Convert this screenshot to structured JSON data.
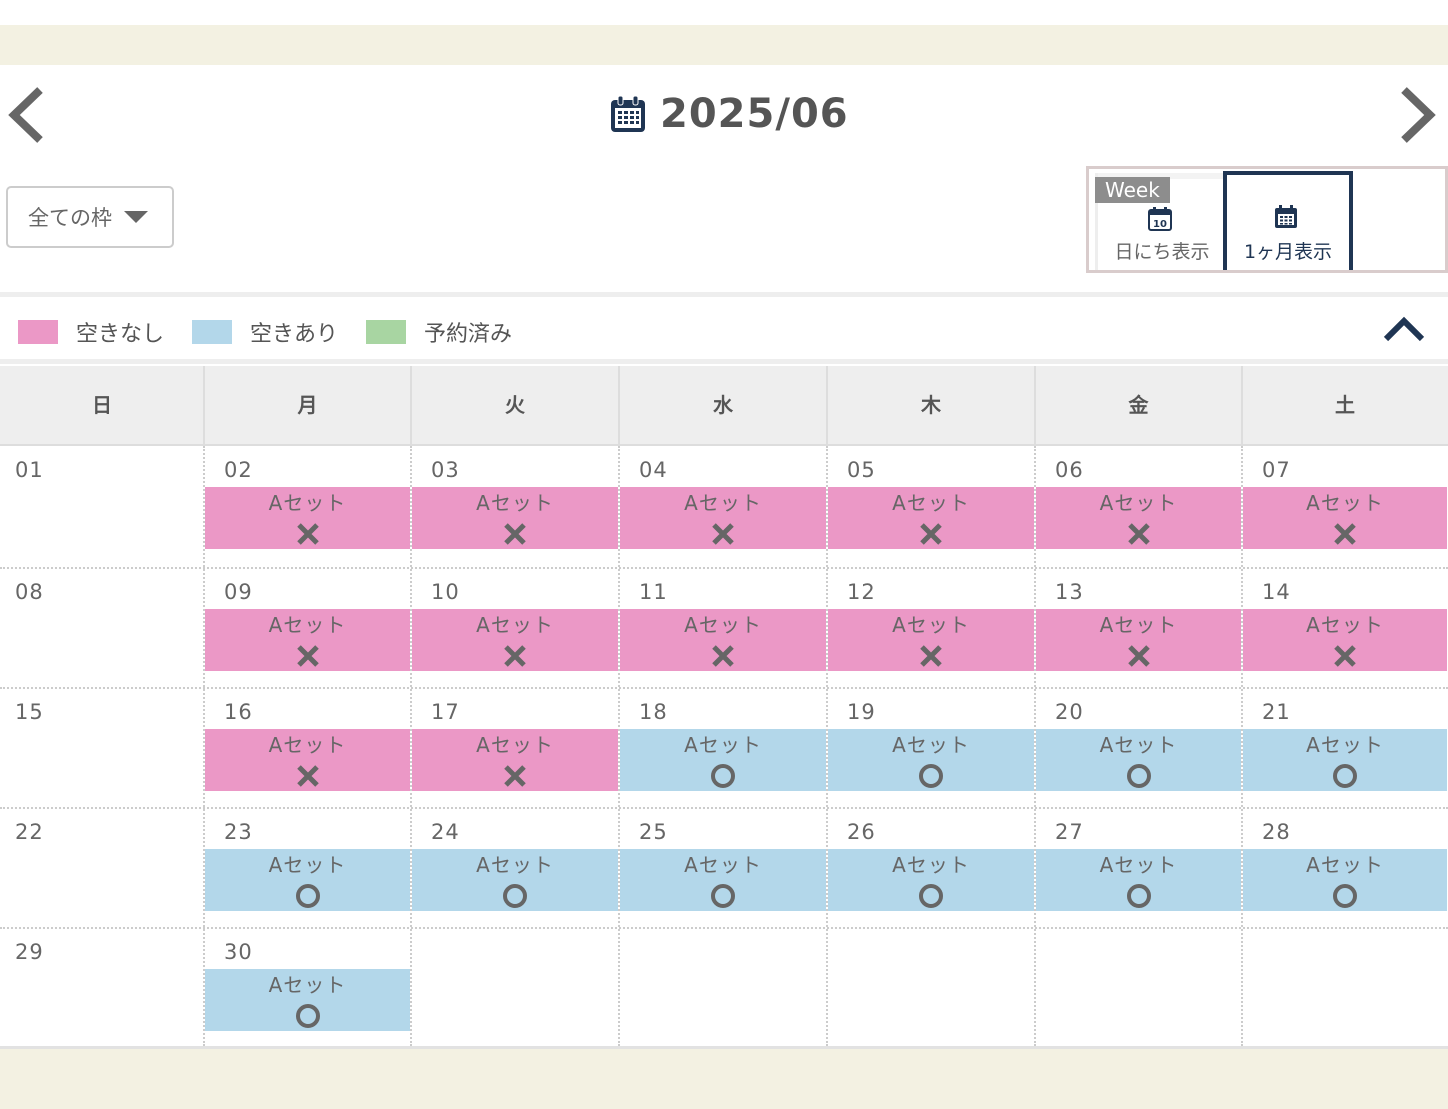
{
  "header": {
    "month_label": "2025/06",
    "prev_icon": "chevron-left-icon",
    "next_icon": "chevron-right-icon",
    "calendar_icon": "calendar-icon"
  },
  "filter": {
    "selected": "全ての枠"
  },
  "view_switch": {
    "week_tag": "Week",
    "day_view_label": "日にち表示",
    "day_view_icon_number": "10",
    "month_view_label": "1ヶ月表示",
    "active": "month"
  },
  "legend": {
    "items": [
      {
        "label": "空きなし",
        "color": "#eb98c6"
      },
      {
        "label": "空きあり",
        "color": "#b3d7ea"
      },
      {
        "label": "予約済み",
        "color": "#a8d5a2"
      }
    ],
    "collapse_icon": "chevron-up-icon"
  },
  "calendar": {
    "weekdays": [
      "日",
      "月",
      "火",
      "水",
      "木",
      "金",
      "土"
    ],
    "weeks": [
      [
        {
          "date": "01",
          "slot": null
        },
        {
          "date": "02",
          "slot": {
            "name": "Aセット",
            "status": "full"
          }
        },
        {
          "date": "03",
          "slot": {
            "name": "Aセット",
            "status": "full"
          }
        },
        {
          "date": "04",
          "slot": {
            "name": "Aセット",
            "status": "full"
          }
        },
        {
          "date": "05",
          "slot": {
            "name": "Aセット",
            "status": "full"
          }
        },
        {
          "date": "06",
          "slot": {
            "name": "Aセット",
            "status": "full"
          }
        },
        {
          "date": "07",
          "slot": {
            "name": "Aセット",
            "status": "full"
          }
        }
      ],
      [
        {
          "date": "08",
          "slot": null
        },
        {
          "date": "09",
          "slot": {
            "name": "Aセット",
            "status": "full"
          }
        },
        {
          "date": "10",
          "slot": {
            "name": "Aセット",
            "status": "full"
          }
        },
        {
          "date": "11",
          "slot": {
            "name": "Aセット",
            "status": "full"
          }
        },
        {
          "date": "12",
          "slot": {
            "name": "Aセット",
            "status": "full"
          }
        },
        {
          "date": "13",
          "slot": {
            "name": "Aセット",
            "status": "full"
          }
        },
        {
          "date": "14",
          "slot": {
            "name": "Aセット",
            "status": "full"
          }
        }
      ],
      [
        {
          "date": "15",
          "slot": null
        },
        {
          "date": "16",
          "slot": {
            "name": "Aセット",
            "status": "full"
          }
        },
        {
          "date": "17",
          "slot": {
            "name": "Aセット",
            "status": "full"
          }
        },
        {
          "date": "18",
          "slot": {
            "name": "Aセット",
            "status": "open"
          }
        },
        {
          "date": "19",
          "slot": {
            "name": "Aセット",
            "status": "open"
          }
        },
        {
          "date": "20",
          "slot": {
            "name": "Aセット",
            "status": "open"
          }
        },
        {
          "date": "21",
          "slot": {
            "name": "Aセット",
            "status": "open"
          }
        }
      ],
      [
        {
          "date": "22",
          "slot": null
        },
        {
          "date": "23",
          "slot": {
            "name": "Aセット",
            "status": "open"
          }
        },
        {
          "date": "24",
          "slot": {
            "name": "Aセット",
            "status": "open"
          }
        },
        {
          "date": "25",
          "slot": {
            "name": "Aセット",
            "status": "open"
          }
        },
        {
          "date": "26",
          "slot": {
            "name": "Aセット",
            "status": "open"
          }
        },
        {
          "date": "27",
          "slot": {
            "name": "Aセット",
            "status": "open"
          }
        },
        {
          "date": "28",
          "slot": {
            "name": "Aセット",
            "status": "open"
          }
        }
      ],
      [
        {
          "date": "29",
          "slot": null
        },
        {
          "date": "30",
          "slot": {
            "name": "Aセット",
            "status": "open"
          }
        },
        null,
        null,
        null,
        null,
        null
      ]
    ]
  }
}
